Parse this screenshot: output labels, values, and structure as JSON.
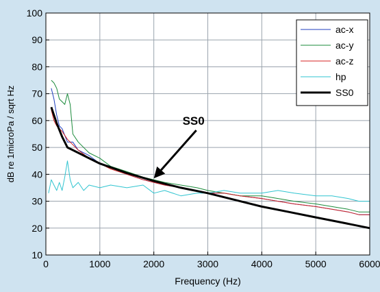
{
  "chart_data": {
    "type": "line",
    "xlabel": "Frequency (Hz)",
    "ylabel": "dB re 1microPa / sqrt Hz",
    "xlim": [
      0,
      6000
    ],
    "ylim": [
      10,
      100
    ],
    "xticks": [
      0,
      1000,
      2000,
      3000,
      4000,
      5000,
      6000
    ],
    "yticks": [
      10,
      20,
      30,
      40,
      50,
      60,
      70,
      80,
      90,
      100
    ],
    "grid": true,
    "legend_position": "top-right",
    "annotation": {
      "text": "SS0",
      "points_to": [
        2000,
        37
      ]
    },
    "series": [
      {
        "name": "ac-x",
        "color": "#1f3fbf",
        "style": "thin",
        "x": [
          100,
          150,
          200,
          250,
          300,
          400,
          500,
          600,
          800,
          1000,
          1200,
          1500,
          1800,
          2000,
          2200,
          2500,
          2800,
          3000,
          3300,
          3600,
          4000,
          4300,
          4600,
          5000,
          5300,
          5600,
          5800,
          6000
        ],
        "values": [
          72,
          68,
          62,
          58,
          57,
          52,
          52,
          49,
          47,
          44,
          43,
          40,
          38,
          37,
          36,
          35,
          34,
          33,
          33,
          32,
          31,
          30,
          29,
          28,
          27,
          26,
          25,
          25
        ]
      },
      {
        "name": "ac-y",
        "color": "#1a8a3a",
        "style": "thin",
        "x": [
          100,
          150,
          200,
          250,
          300,
          350,
          400,
          450,
          500,
          600,
          800,
          1000,
          1200,
          1500,
          1800,
          2000,
          2200,
          2500,
          2800,
          3000,
          3300,
          3600,
          4000,
          4300,
          4600,
          5000,
          5300,
          5600,
          5800,
          6000
        ],
        "values": [
          75,
          74,
          72,
          68,
          67,
          66,
          70,
          66,
          55,
          52,
          48,
          46,
          43,
          41,
          39,
          38,
          37,
          36,
          35,
          34,
          33,
          32,
          32,
          31,
          30,
          29,
          28,
          27,
          26,
          26
        ]
      },
      {
        "name": "ac-z",
        "color": "#d42020",
        "style": "thin",
        "x": [
          100,
          150,
          200,
          250,
          300,
          400,
          500,
          600,
          800,
          1000,
          1200,
          1500,
          1800,
          2000,
          2200,
          2500,
          2800,
          3000,
          3300,
          3600,
          4000,
          4300,
          4600,
          5000,
          5300,
          5600,
          5800,
          6000
        ],
        "values": [
          64,
          60,
          58,
          57,
          56,
          53,
          51,
          49,
          46,
          44,
          42,
          40,
          38,
          37,
          36,
          35,
          34,
          33,
          33,
          32,
          31,
          30,
          29,
          28,
          27,
          26,
          25,
          25
        ]
      },
      {
        "name": "hp",
        "color": "#2fc4d0",
        "style": "thin",
        "x": [
          50,
          100,
          150,
          200,
          250,
          300,
          350,
          400,
          450,
          500,
          600,
          700,
          800,
          1000,
          1200,
          1500,
          1800,
          2000,
          2200,
          2500,
          2800,
          3000,
          3300,
          3600,
          4000,
          4300,
          4600,
          5000,
          5300,
          5600,
          5800,
          6000
        ],
        "values": [
          33,
          38,
          36,
          34,
          37,
          34,
          39,
          45,
          38,
          35,
          37,
          34,
          36,
          35,
          36,
          35,
          36,
          33,
          34,
          32,
          33,
          33,
          34,
          33,
          33,
          34,
          33,
          32,
          32,
          31,
          30,
          30
        ]
      },
      {
        "name": "SS0",
        "color": "#000000",
        "style": "thick",
        "x": [
          100,
          200,
          300,
          400,
          500,
          700,
          1000,
          1500,
          2000,
          2500,
          3000,
          3500,
          4000,
          4500,
          5000,
          5500,
          6000
        ],
        "values": [
          65,
          59,
          54,
          50,
          49,
          47,
          44,
          40.5,
          37.5,
          35,
          33,
          30.5,
          28,
          26,
          24,
          22,
          20
        ]
      }
    ]
  }
}
